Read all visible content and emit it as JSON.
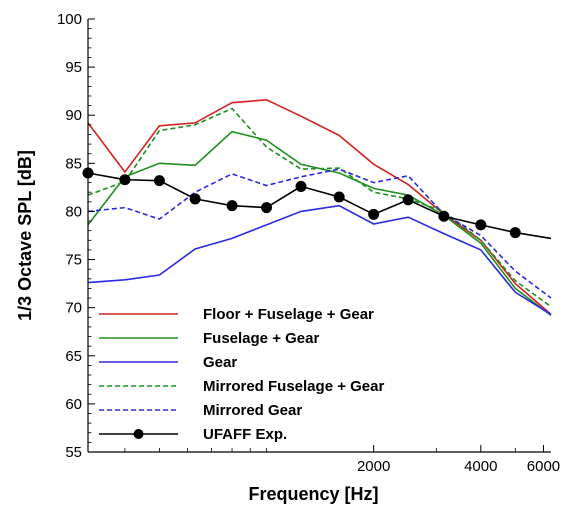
{
  "chart_data": {
    "type": "line",
    "xlabel": "Frequency [Hz]",
    "ylabel": "1/3 Octave SPL [dB]",
    "x_scale": "log",
    "xlim": [
      315,
      6300
    ],
    "ylim": [
      55,
      100
    ],
    "x_ticks": [
      {
        "value": 2000,
        "label": "2000"
      },
      {
        "value": 4000,
        "label": "4000"
      },
      {
        "value": 6000,
        "label": "6000"
      }
    ],
    "y_ticks": [
      {
        "value": 55,
        "label": "55"
      },
      {
        "value": 60,
        "label": "60"
      },
      {
        "value": 65,
        "label": "65"
      },
      {
        "value": 70,
        "label": "70"
      },
      {
        "value": 75,
        "label": "75"
      },
      {
        "value": 80,
        "label": "80"
      },
      {
        "value": 85,
        "label": "85"
      },
      {
        "value": 90,
        "label": "90"
      },
      {
        "value": 95,
        "label": "95"
      },
      {
        "value": 100,
        "label": "100"
      }
    ],
    "grid": false,
    "legend_position": "bottom-left",
    "x": [
      315,
      400,
      500,
      630,
      800,
      1000,
      1250,
      1600,
      2000,
      2500,
      3150,
      4000,
      5000,
      6300
    ],
    "series": [
      {
        "name": "Floor + Fuselage + Gear",
        "color": "#d62020",
        "style": "solid",
        "marker": false,
        "values": [
          89.2,
          84.1,
          88.9,
          89.2,
          91.3,
          91.6,
          89.9,
          87.9,
          84.9,
          82.8,
          79.7,
          77.0,
          72.5,
          69.3
        ]
      },
      {
        "name": "Fuselage + Gear",
        "color": "#1f8f1f",
        "style": "solid",
        "marker": false,
        "values": [
          78.6,
          83.6,
          85.0,
          84.8,
          88.3,
          87.4,
          84.9,
          84.0,
          82.4,
          81.7,
          79.6,
          76.7,
          72.0,
          69.2
        ]
      },
      {
        "name": "Gear",
        "color": "#2a2ae0",
        "style": "solid",
        "marker": false,
        "values": [
          72.6,
          72.9,
          73.4,
          76.1,
          77.2,
          78.6,
          80.0,
          80.6,
          78.7,
          79.4,
          77.7,
          76.0,
          71.6,
          69.3
        ]
      },
      {
        "name": "Mirrored Fuselage + Gear",
        "color": "#1f8f1f",
        "style": "dashed",
        "marker": false,
        "values": [
          81.7,
          83.1,
          88.4,
          89.0,
          90.7,
          86.7,
          84.4,
          84.5,
          82.0,
          81.3,
          80.0,
          77.0,
          72.8,
          70.1
        ]
      },
      {
        "name": "Mirrored Gear",
        "color": "#2a2ae0",
        "style": "dashed",
        "marker": false,
        "values": [
          80.0,
          80.4,
          79.2,
          82.0,
          83.9,
          82.7,
          83.6,
          84.4,
          83.0,
          83.7,
          79.7,
          77.5,
          73.8,
          71.0
        ]
      },
      {
        "name": "UFAFF Exp.",
        "color": "#000000",
        "style": "solid",
        "marker": true,
        "values": [
          84.0,
          83.3,
          83.2,
          81.3,
          80.6,
          80.4,
          82.6,
          81.5,
          79.7,
          81.2,
          79.5,
          78.6,
          77.8,
          77.2
        ],
        "marker_mask": [
          true,
          true,
          true,
          true,
          true,
          true,
          true,
          true,
          true,
          true,
          true,
          true,
          true,
          false
        ]
      }
    ]
  }
}
